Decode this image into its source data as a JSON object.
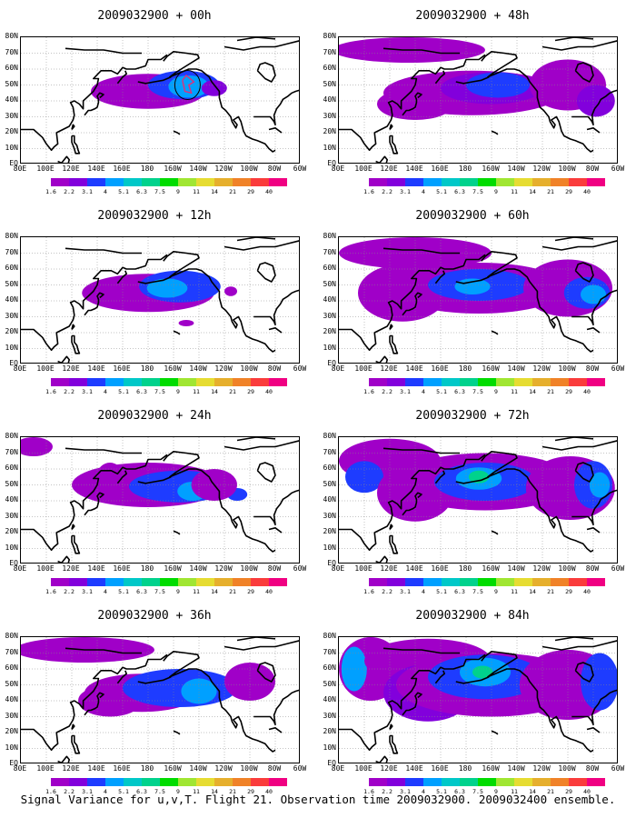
{
  "panels": [
    {
      "title": "2009032900 + 00h",
      "forecast_hour": 0
    },
    {
      "title": "2009032900 + 48h",
      "forecast_hour": 48
    },
    {
      "title": "2009032900 + 12h",
      "forecast_hour": 12
    },
    {
      "title": "2009032900 + 60h",
      "forecast_hour": 60
    },
    {
      "title": "2009032900 + 24h",
      "forecast_hour": 24
    },
    {
      "title": "2009032900 + 72h",
      "forecast_hour": 72
    },
    {
      "title": "2009032900 + 36h",
      "forecast_hour": 36
    },
    {
      "title": "2009032900 + 84h",
      "forecast_hour": 84
    }
  ],
  "lat_labels": [
    "80N",
    "70N",
    "60N",
    "50N",
    "40N",
    "30N",
    "20N",
    "10N",
    "EQ"
  ],
  "lon_labels": [
    "80E",
    "100E",
    "120E",
    "140E",
    "160E",
    "180",
    "160W",
    "140W",
    "120W",
    "100W",
    "80W",
    "60W"
  ],
  "colorbar": {
    "labels": [
      "1.6",
      "2.2",
      "3.1",
      "4",
      "5.1",
      "6.3",
      "7.5",
      "9",
      "11",
      "14",
      "21",
      "29",
      "40"
    ],
    "colors": [
      "#a000c8",
      "#8200dc",
      "#1e3cff",
      "#00a0ff",
      "#00c8c8",
      "#00d28c",
      "#00dc00",
      "#a0e632",
      "#e6dc32",
      "#e6af2d",
      "#f08228",
      "#fa3c3c",
      "#f00082"
    ]
  },
  "caption": "Signal Variance for u,v,T. Flight 21. Observation time 2009032900. 2009032400 ensemble."
}
